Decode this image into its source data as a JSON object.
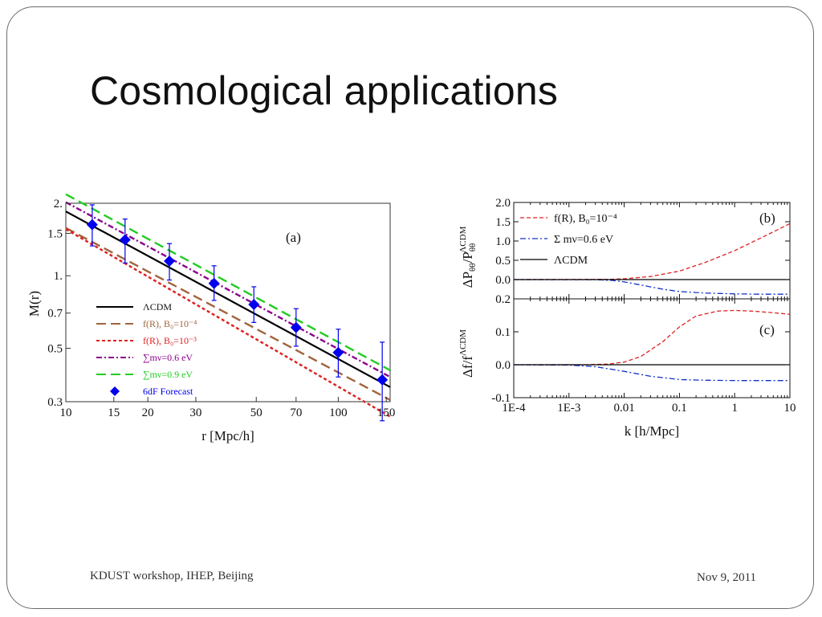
{
  "slide": {
    "title": "Cosmological applications",
    "footer_left": "KDUST workshop, IHEP, Beijing",
    "footer_right": "Nov 9, 2011"
  },
  "chart_data": [
    {
      "id": "a",
      "type": "line",
      "panel_label": "(a)",
      "xlabel": "r [Mpc/h]",
      "ylabel": "M(r)",
      "xscale": "log",
      "yscale": "log",
      "xlim": [
        10,
        155
      ],
      "ylim": [
        0.3,
        2.0
      ],
      "xticks": [
        10,
        15,
        20,
        30,
        50,
        70,
        100,
        150
      ],
      "xtick_labels": [
        "10",
        "15",
        "20",
        "30",
        "50",
        "70",
        "100",
        "150"
      ],
      "yticks": [
        0.3,
        0.5,
        0.7,
        1.0,
        1.5,
        2.0
      ],
      "ytick_labels": [
        "0.3",
        "0.5",
        "0.7",
        "1.",
        "1.5",
        "2."
      ],
      "legend_position": "bottom-left",
      "series": [
        {
          "name": "ΛCDM",
          "color": "#000000",
          "dash": "solid",
          "x": [
            10,
            155
          ],
          "y": [
            1.85,
            0.345
          ]
        },
        {
          "name": "f(R), B0=10^-4",
          "color": "#a0643c",
          "dash": "long-dash",
          "x": [
            10,
            155
          ],
          "y": [
            1.58,
            0.305
          ]
        },
        {
          "name": "f(R), B0=10^-3",
          "color": "#e02020",
          "dash": "short-dash",
          "x": [
            10,
            155
          ],
          "y": [
            1.56,
            0.26
          ]
        },
        {
          "name": "∑mν=0.6 eV",
          "color": "#8b008b",
          "dash": "dash-dot",
          "x": [
            10,
            155
          ],
          "y": [
            2.02,
            0.38
          ]
        },
        {
          "name": "∑mν=0.9 eV",
          "color": "#22cc22",
          "dash": "long-dash",
          "x": [
            10,
            155
          ],
          "y": [
            2.18,
            0.405
          ]
        }
      ],
      "points": {
        "name": "6dF Forecast",
        "color": "#0000ee",
        "x": [
          12.5,
          16.5,
          24,
          35,
          49,
          70,
          100,
          145
        ],
        "y": [
          1.63,
          1.41,
          1.15,
          0.93,
          0.76,
          0.61,
          0.48,
          0.37
        ],
        "err_low": [
          1.33,
          1.13,
          0.96,
          0.79,
          0.64,
          0.51,
          0.38,
          0.25
        ],
        "err_high": [
          1.97,
          1.72,
          1.36,
          1.1,
          0.9,
          0.73,
          0.6,
          0.53
        ]
      },
      "legend": [
        {
          "label": "ΛCDM",
          "color": "#000000"
        },
        {
          "label": "f(R), B₀=10⁻⁴",
          "color": "#a0643c"
        },
        {
          "label": "f(R), B₀=10⁻³",
          "color": "#e02020"
        },
        {
          "label": "∑mν=0.6 eV",
          "color": "#8b008b"
        },
        {
          "label": "∑mν=0.9 eV",
          "color": "#22cc22"
        },
        {
          "label": "6dF Forecast",
          "color": "#0000ee"
        }
      ]
    },
    {
      "id": "b",
      "type": "line",
      "panel_label": "(b)",
      "ylabel": "ΔPθθ/PθθΛCDM",
      "xscale": "log",
      "xlim": [
        0.0001,
        10
      ],
      "ylim": [
        -0.5,
        2.0
      ],
      "yticks": [
        0.0,
        0.5,
        1.0,
        1.5,
        2.0
      ],
      "ytick_labels": [
        "0.0",
        "0.5",
        "1.0",
        "1.5",
        "2.0"
      ],
      "legend_position": "top-left",
      "series": [
        {
          "name": "f(R), B0=10^-4",
          "color": "#e02020",
          "dash": "dash",
          "x": [
            0.0001,
            0.005,
            0.01,
            0.03,
            0.1,
            0.3,
            1,
            3,
            10
          ],
          "y": [
            0,
            0.005,
            0.02,
            0.08,
            0.22,
            0.45,
            0.75,
            1.08,
            1.45
          ]
        },
        {
          "name": "Σ mν=0.6 eV",
          "color": "#1030c8",
          "dash": "dash-dot",
          "x": [
            0.0001,
            0.003,
            0.006,
            0.01,
            0.02,
            0.05,
            0.1,
            0.3,
            1,
            3,
            10
          ],
          "y": [
            0,
            -0.003,
            -0.02,
            -0.06,
            -0.14,
            -0.25,
            -0.31,
            -0.35,
            -0.37,
            -0.38,
            -0.38
          ]
        },
        {
          "name": "ΛCDM",
          "color": "#000000",
          "dash": "solid",
          "x": [
            0.0001,
            10
          ],
          "y": [
            0,
            0
          ]
        }
      ],
      "legend": [
        {
          "label": "f(R), B₀=10⁻⁴",
          "color": "#e02020"
        },
        {
          "label": "Σ mν=0.6 eV",
          "color": "#1030c8"
        },
        {
          "label": "ΛCDM",
          "color": "#000000"
        }
      ]
    },
    {
      "id": "c",
      "type": "line",
      "panel_label": "(c)",
      "xlabel": "k [h/Mpc]",
      "ylabel": "Δf/fΛCDM",
      "xscale": "log",
      "xlim": [
        0.0001,
        10
      ],
      "ylim": [
        -0.1,
        0.2
      ],
      "xticks": [
        0.0001,
        0.001,
        0.01,
        0.1,
        1,
        10
      ],
      "xtick_labels": [
        "1E-4",
        "1E-3",
        "0.01",
        "0.1",
        "1",
        "10"
      ],
      "yticks": [
        -0.1,
        0.0,
        0.1,
        0.2
      ],
      "ytick_labels": [
        "-0.1",
        "0.0",
        "0.1",
        "0.2"
      ],
      "series": [
        {
          "name": "f(R), B0=10^-4",
          "color": "#e02020",
          "dash": "dash",
          "x": [
            0.0001,
            0.002,
            0.005,
            0.01,
            0.02,
            0.05,
            0.1,
            0.2,
            0.5,
            1,
            2,
            5,
            10
          ],
          "y": [
            0,
            0,
            0.002,
            0.008,
            0.025,
            0.07,
            0.115,
            0.148,
            0.163,
            0.165,
            0.163,
            0.158,
            0.153
          ]
        },
        {
          "name": "Σ mν=0.6 eV",
          "color": "#1030c8",
          "dash": "dash-dot",
          "x": [
            0.0001,
            0.001,
            0.003,
            0.01,
            0.03,
            0.1,
            0.3,
            1,
            10
          ],
          "y": [
            0,
            -0.001,
            -0.006,
            -0.02,
            -0.035,
            -0.045,
            -0.047,
            -0.048,
            -0.048
          ]
        },
        {
          "name": "ΛCDM",
          "color": "#000000",
          "dash": "solid",
          "x": [
            0.0001,
            10
          ],
          "y": [
            0,
            0
          ]
        }
      ]
    }
  ]
}
